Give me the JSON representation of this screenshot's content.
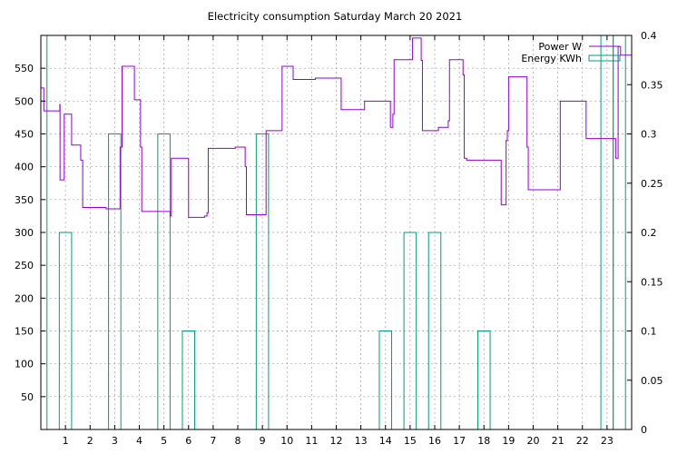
{
  "chart_data": {
    "type": "line",
    "title": "Electricity consumption Saturday March 20 2021",
    "xlim": [
      0,
      24
    ],
    "ylim_left": [
      0,
      600
    ],
    "ylim_right": [
      0,
      0.4
    ],
    "x_ticks": [
      1,
      2,
      3,
      4,
      5,
      6,
      7,
      8,
      9,
      10,
      11,
      12,
      13,
      14,
      15,
      16,
      17,
      18,
      19,
      20,
      21,
      22,
      23
    ],
    "y_ticks_left": [
      50,
      100,
      150,
      200,
      250,
      300,
      350,
      400,
      450,
      500,
      550
    ],
    "y_ticks_right": [
      "0",
      "0.05",
      "0.1",
      "0.15",
      "0.2",
      "0.25",
      "0.3",
      "0.35",
      "0.4"
    ],
    "grid": true,
    "legend_position": "top-right",
    "series": [
      {
        "name": "Power W",
        "axis": "left",
        "color": "#9400d3",
        "kind": "step",
        "points": [
          [
            0.0,
            520
          ],
          [
            0.12,
            485
          ],
          [
            0.75,
            485
          ],
          [
            0.77,
            495
          ],
          [
            0.78,
            380
          ],
          [
            0.9,
            380
          ],
          [
            0.95,
            480
          ],
          [
            1.2,
            480
          ],
          [
            1.25,
            433
          ],
          [
            1.6,
            433
          ],
          [
            1.62,
            410
          ],
          [
            1.7,
            338
          ],
          [
            2.6,
            338
          ],
          [
            2.65,
            336
          ],
          [
            3.2,
            336
          ],
          [
            3.22,
            430
          ],
          [
            3.3,
            553
          ],
          [
            3.75,
            553
          ],
          [
            3.8,
            502
          ],
          [
            4.0,
            502
          ],
          [
            4.05,
            430
          ],
          [
            4.1,
            332
          ],
          [
            5.2,
            332
          ],
          [
            5.25,
            325
          ],
          [
            5.3,
            413
          ],
          [
            5.95,
            413
          ],
          [
            6.0,
            323
          ],
          [
            6.6,
            323
          ],
          [
            6.65,
            325
          ],
          [
            6.75,
            330
          ],
          [
            6.8,
            428
          ],
          [
            7.85,
            428
          ],
          [
            7.9,
            430
          ],
          [
            8.25,
            430
          ],
          [
            8.3,
            400
          ],
          [
            8.35,
            327
          ],
          [
            9.1,
            327
          ],
          [
            9.15,
            455
          ],
          [
            9.75,
            455
          ],
          [
            9.8,
            553
          ],
          [
            10.2,
            553
          ],
          [
            10.25,
            533
          ],
          [
            11.1,
            533
          ],
          [
            11.15,
            535
          ],
          [
            12.15,
            535
          ],
          [
            12.2,
            487
          ],
          [
            13.1,
            487
          ],
          [
            13.15,
            500
          ],
          [
            14.15,
            500
          ],
          [
            14.2,
            460
          ],
          [
            14.25,
            460
          ],
          [
            14.3,
            480
          ],
          [
            14.35,
            563
          ],
          [
            15.05,
            563
          ],
          [
            15.1,
            596
          ],
          [
            15.4,
            596
          ],
          [
            15.45,
            562
          ],
          [
            15.5,
            455
          ],
          [
            16.1,
            455
          ],
          [
            16.15,
            460
          ],
          [
            16.5,
            460
          ],
          [
            16.55,
            470
          ],
          [
            16.6,
            563
          ],
          [
            17.1,
            563
          ],
          [
            17.15,
            540
          ],
          [
            17.2,
            413
          ],
          [
            17.3,
            410
          ],
          [
            18.65,
            410
          ],
          [
            18.7,
            342
          ],
          [
            18.85,
            342
          ],
          [
            18.9,
            440
          ],
          [
            18.95,
            455
          ],
          [
            19.0,
            537
          ],
          [
            19.7,
            537
          ],
          [
            19.75,
            430
          ],
          [
            19.8,
            365
          ],
          [
            21.05,
            365
          ],
          [
            21.1,
            500
          ],
          [
            22.1,
            500
          ],
          [
            22.15,
            443
          ],
          [
            23.3,
            443
          ],
          [
            23.35,
            413
          ],
          [
            23.45,
            583
          ],
          [
            23.55,
            570
          ],
          [
            24.0,
            570
          ],
          [
            24.0,
            440
          ]
        ]
      },
      {
        "name": "Energy KWh",
        "axis": "right",
        "color": "#009e73",
        "kind": "bars",
        "bars": [
          {
            "x0": 0.0,
            "x1": 0.25,
            "value": 0.4
          },
          {
            "x0": 0.75,
            "x1": 1.25,
            "value": 0.2
          },
          {
            "x0": 2.75,
            "x1": 3.25,
            "value": 0.3
          },
          {
            "x0": 4.75,
            "x1": 5.25,
            "value": 0.3
          },
          {
            "x0": 5.75,
            "x1": 6.25,
            "value": 0.1
          },
          {
            "x0": 8.75,
            "x1": 9.25,
            "value": 0.3
          },
          {
            "x0": 13.75,
            "x1": 14.25,
            "value": 0.1
          },
          {
            "x0": 14.75,
            "x1": 15.25,
            "value": 0.2
          },
          {
            "x0": 15.75,
            "x1": 16.25,
            "value": 0.2
          },
          {
            "x0": 17.75,
            "x1": 18.25,
            "value": 0.1
          },
          {
            "x0": 22.75,
            "x1": 23.25,
            "value": 0.4
          },
          {
            "x0": 23.25,
            "x1": 23.75,
            "value": 0.4
          }
        ]
      }
    ]
  }
}
